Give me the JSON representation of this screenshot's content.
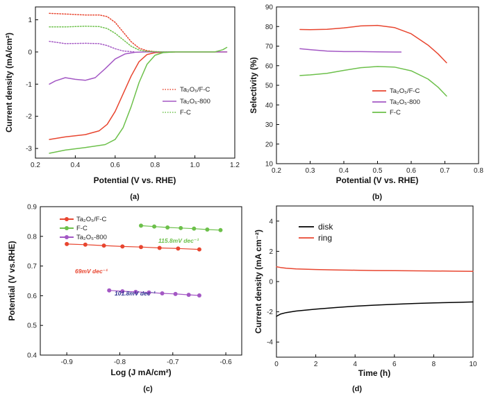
{
  "colors": {
    "red": "#e8452f",
    "purple": "#a357c4",
    "green": "#6cc04a",
    "black": "#000000",
    "navy": "#2a2f8f"
  },
  "panels": {
    "a": {
      "label": "(a)",
      "xlabel": "Potential (V vs. RHE)",
      "ylabel": "Current density (mA/cm²)",
      "xticks": [
        "0.2",
        "0.4",
        "0.6",
        "0.8",
        "1.0",
        "1.2"
      ],
      "yticks": [
        "1",
        "0",
        "-1",
        "-2",
        "-3"
      ],
      "legend": [
        "Ta₂O₅/F-C",
        "Ta₂O₅-800",
        "F-C"
      ]
    },
    "b": {
      "label": "(b)",
      "xlabel": "Potential (V vs. RHE)",
      "ylabel": "Selectivity (%)",
      "xticks": [
        "0.2",
        "0.3",
        "0.4",
        "0.5",
        "0.6",
        "0.7",
        "0.8"
      ],
      "yticks": [
        "90",
        "80",
        "70",
        "60",
        "50",
        "40",
        "30",
        "20",
        "10"
      ],
      "legend": [
        "Ta₂O₅/F-C",
        "Ta₂O₅-800",
        "F-C"
      ]
    },
    "c": {
      "label": "(c)",
      "xlabel": "Log (J mA/cm²)",
      "ylabel": "Potential (V vs.RHE)",
      "xticks": [
        "-0.9",
        "-0.8",
        "-0.7",
        "-0.6"
      ],
      "yticks": [
        "0.9",
        "0.8",
        "0.7",
        "0.6",
        "0.5",
        "0.4"
      ],
      "legend": [
        "Ta₂O₅/F-C",
        "F-C",
        "Ta₂O₅-800"
      ],
      "annotations": [
        "115.8mV dec⁻¹",
        "69mV dec⁻¹",
        "101.8mV dec⁻¹"
      ]
    },
    "d": {
      "label": "(d)",
      "xlabel": "Time (h)",
      "ylabel": "Current density (mA cm⁻²)",
      "xticks": [
        "0",
        "2",
        "4",
        "6",
        "8",
        "10"
      ],
      "yticks": [
        "4",
        "2",
        "0",
        "-2",
        "-4"
      ],
      "legend": [
        "disk",
        "ring"
      ]
    }
  },
  "chart_data": [
    {
      "type": "line",
      "panel": "a",
      "xlim": [
        0.2,
        1.2
      ],
      "ylim": [
        -3.3,
        1.4
      ],
      "series": [
        {
          "name": "Ta₂O₅/F-C",
          "style": "solid",
          "color": "#e8452f",
          "x": [
            0.27,
            0.35,
            0.45,
            0.52,
            0.56,
            0.6,
            0.64,
            0.68,
            0.72,
            0.76,
            0.8,
            0.85,
            0.9,
            1.0,
            1.1,
            1.16
          ],
          "y": [
            -2.72,
            -2.64,
            -2.57,
            -2.45,
            -2.25,
            -1.85,
            -1.3,
            -0.75,
            -0.3,
            -0.08,
            -0.02,
            -0.01,
            0,
            0,
            0,
            0
          ]
        },
        {
          "name": "Ta₂O₅/F-C",
          "style": "dotted",
          "color": "#e8452f",
          "x": [
            0.27,
            0.35,
            0.45,
            0.52,
            0.56,
            0.6,
            0.64,
            0.68,
            0.72,
            0.76,
            0.8,
            0.85,
            0.9
          ],
          "y": [
            1.2,
            1.18,
            1.15,
            1.15,
            1.1,
            0.92,
            0.62,
            0.32,
            0.12,
            0.04,
            0.01,
            0,
            0
          ]
        },
        {
          "name": "Ta₂O₅-800",
          "style": "solid",
          "color": "#a357c4",
          "x": [
            0.27,
            0.3,
            0.35,
            0.4,
            0.45,
            0.5,
            0.55,
            0.6,
            0.65,
            0.7,
            0.75,
            0.8,
            0.9,
            1.0,
            1.1,
            1.16
          ],
          "y": [
            -1.0,
            -0.9,
            -0.8,
            -0.85,
            -0.88,
            -0.8,
            -0.52,
            -0.22,
            -0.06,
            -0.01,
            0,
            0,
            0,
            0,
            0,
            0
          ]
        },
        {
          "name": "Ta₂O₅-800",
          "style": "dotted",
          "color": "#a357c4",
          "x": [
            0.27,
            0.35,
            0.45,
            0.52,
            0.56,
            0.6,
            0.64,
            0.7
          ],
          "y": [
            0.33,
            0.26,
            0.27,
            0.26,
            0.2,
            0.1,
            0.03,
            0
          ]
        },
        {
          "name": "F-C",
          "style": "solid",
          "color": "#6cc04a",
          "x": [
            0.27,
            0.35,
            0.45,
            0.55,
            0.6,
            0.64,
            0.68,
            0.72,
            0.76,
            0.8,
            0.84,
            0.9,
            1.0,
            1.1,
            1.14,
            1.16
          ],
          "y": [
            -3.15,
            -3.05,
            -2.97,
            -2.88,
            -2.72,
            -2.35,
            -1.7,
            -0.95,
            -0.38,
            -0.1,
            -0.02,
            0,
            0,
            0,
            0.07,
            0.14
          ]
        },
        {
          "name": "F-C",
          "style": "dotted",
          "color": "#6cc04a",
          "x": [
            0.27,
            0.35,
            0.45,
            0.52,
            0.56,
            0.6,
            0.64,
            0.68,
            0.72,
            0.76,
            0.8,
            0.85,
            0.9
          ],
          "y": [
            0.78,
            0.78,
            0.8,
            0.79,
            0.73,
            0.58,
            0.38,
            0.18,
            0.06,
            0.02,
            0.01,
            0,
            0
          ]
        }
      ]
    },
    {
      "type": "line",
      "panel": "b",
      "xlim": [
        0.2,
        0.8
      ],
      "ylim": [
        10,
        90
      ],
      "series": [
        {
          "name": "Ta₂O₅/F-C",
          "color": "#e8452f",
          "x": [
            0.27,
            0.3,
            0.35,
            0.4,
            0.45,
            0.5,
            0.55,
            0.6,
            0.65,
            0.68,
            0.705
          ],
          "y": [
            78.5,
            78.4,
            78.6,
            79.3,
            80.3,
            80.6,
            79.5,
            76.3,
            70.5,
            66,
            61.5
          ]
        },
        {
          "name": "Ta₂O₅-800",
          "color": "#a357c4",
          "x": [
            0.27,
            0.3,
            0.35,
            0.4,
            0.45,
            0.5,
            0.55,
            0.57
          ],
          "y": [
            68.7,
            68.2,
            67.5,
            67.2,
            67.2,
            67.1,
            67,
            67
          ]
        },
        {
          "name": "F-C",
          "color": "#6cc04a",
          "x": [
            0.27,
            0.3,
            0.35,
            0.4,
            0.45,
            0.5,
            0.55,
            0.6,
            0.65,
            0.68,
            0.705
          ],
          "y": [
            55,
            55.3,
            56.1,
            57.6,
            59,
            59.6,
            59.3,
            57.4,
            53.2,
            49,
            44.5
          ]
        }
      ]
    },
    {
      "type": "scatter",
      "panel": "c",
      "xlim": [
        -0.95,
        -0.57
      ],
      "ylim": [
        0.4,
        0.9
      ],
      "series": [
        {
          "name": "Ta₂O₅/F-C",
          "color": "#e8452f",
          "x": [
            -0.9,
            -0.865,
            -0.83,
            -0.795,
            -0.76,
            -0.725,
            -0.69,
            -0.65
          ],
          "y": [
            0.774,
            0.772,
            0.769,
            0.766,
            0.764,
            0.761,
            0.759,
            0.756
          ]
        },
        {
          "name": "F-C",
          "color": "#6cc04a",
          "x": [
            -0.76,
            -0.735,
            -0.71,
            -0.685,
            -0.66,
            -0.635,
            -0.61
          ],
          "y": [
            0.836,
            0.833,
            0.83,
            0.828,
            0.826,
            0.823,
            0.821
          ]
        },
        {
          "name": "Ta₂O₅-800",
          "color": "#a357c4",
          "x": [
            -0.82,
            -0.795,
            -0.77,
            -0.745,
            -0.72,
            -0.695,
            -0.67,
            -0.65
          ],
          "y": [
            0.618,
            0.615,
            0.613,
            0.611,
            0.608,
            0.606,
            0.603,
            0.601
          ]
        }
      ]
    },
    {
      "type": "line",
      "panel": "d",
      "xlim": [
        0,
        10
      ],
      "ylim": [
        -5,
        5
      ],
      "series": [
        {
          "name": "disk",
          "color": "#000000",
          "x": [
            0,
            0.2,
            0.5,
            1,
            2,
            3,
            4,
            5,
            6,
            7,
            8,
            9,
            10
          ],
          "y": [
            -2.3,
            -2.15,
            -2.05,
            -1.95,
            -1.82,
            -1.72,
            -1.63,
            -1.56,
            -1.5,
            -1.45,
            -1.41,
            -1.38,
            -1.35
          ]
        },
        {
          "name": "ring",
          "color": "#e8452f",
          "x": [
            0,
            0.2,
            0.5,
            1,
            2,
            3,
            4,
            5,
            6,
            7,
            8,
            9,
            10
          ],
          "y": [
            0.98,
            0.93,
            0.88,
            0.84,
            0.8,
            0.77,
            0.75,
            0.73,
            0.72,
            0.71,
            0.7,
            0.69,
            0.68
          ]
        }
      ]
    }
  ]
}
